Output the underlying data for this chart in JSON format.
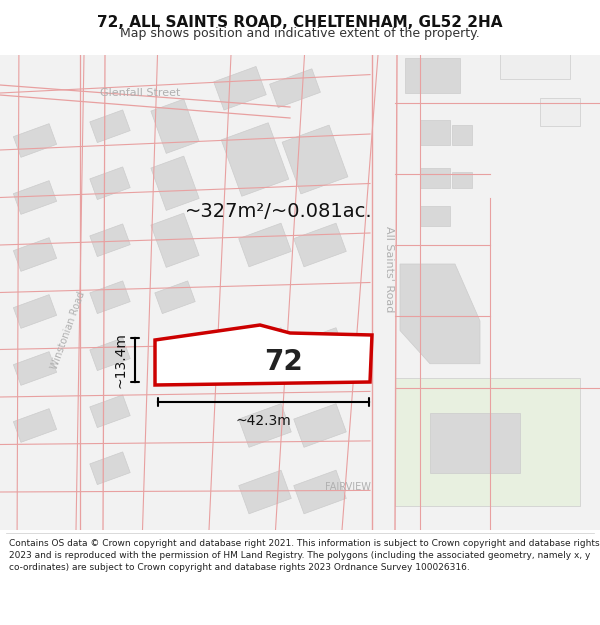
{
  "title": "72, ALL SAINTS ROAD, CHELTENHAM, GL52 2HA",
  "subtitle": "Map shows position and indicative extent of the property.",
  "footer": "Contains OS data © Crown copyright and database right 2021. This information is subject to Crown copyright and database rights 2023 and is reproduced with the permission of HM Land Registry. The polygons (including the associated geometry, namely x, y co-ordinates) are subject to Crown copyright and database rights 2023 Ordnance Survey 100026316.",
  "area_label": "~327m²/~0.081ac.",
  "width_label": "~42.3m",
  "height_label": "~13.4m",
  "number_label": "72",
  "street_label_1": "All Saints' Road",
  "street_label_2": "Winstonian Road",
  "street_label_3": "Glenfall Street",
  "district_label": "FAIRVIEW",
  "bg_color": "#ffffff",
  "map_bg": "#f0f0f0",
  "road_fill": "#ffffff",
  "building_fill": "#d8d8d8",
  "road_line_color": "#e8a0a0",
  "highlight_color": "#cc0000",
  "text_color": "#333333",
  "street_text_color": "#b0b0b0",
  "title_fontsize": 11,
  "subtitle_fontsize": 9,
  "footer_fontsize": 6.5
}
